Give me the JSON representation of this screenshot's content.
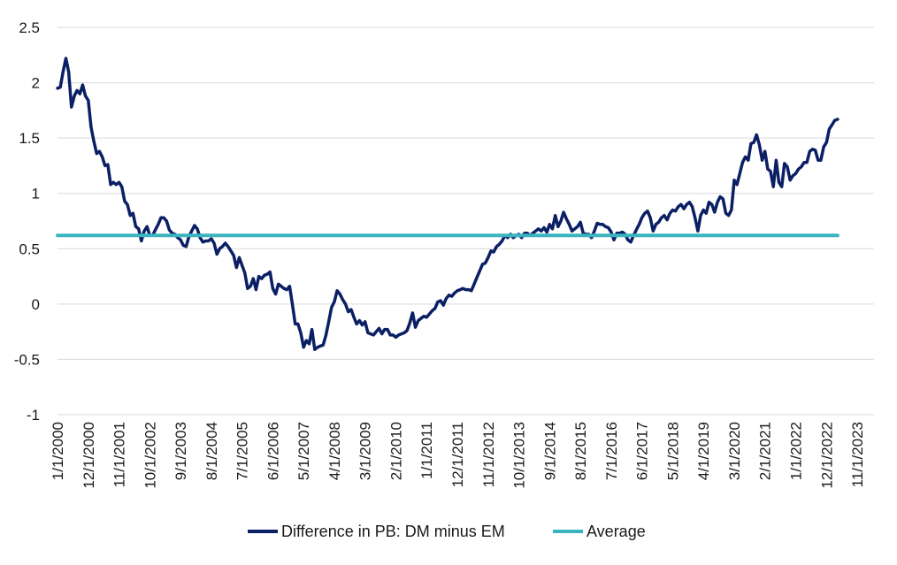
{
  "chart_data": {
    "type": "line",
    "title": "",
    "xlabel": "",
    "ylabel": "",
    "ylim": [
      -1,
      2.5
    ],
    "yticks": [
      "-1",
      "-0.5",
      "0",
      "0.5",
      "1",
      "1.5",
      "2",
      "2.5"
    ],
    "grid": true,
    "legend_position": "bottom",
    "x_tick_labels": [
      "1/1/2000",
      "12/1/2000",
      "11/1/2001",
      "10/1/2002",
      "9/1/2003",
      "8/1/2004",
      "7/1/2005",
      "6/1/2006",
      "5/1/2007",
      "4/1/2008",
      "3/1/2009",
      "2/1/2010",
      "1/1/2011",
      "12/1/2011",
      "11/1/2012",
      "10/1/2013",
      "9/1/2014",
      "8/1/2015",
      "7/1/2016",
      "6/1/2017",
      "5/1/2018",
      "4/1/2019",
      "3/1/2020",
      "2/1/2021",
      "1/1/2022",
      "12/1/2022",
      "11/1/2023"
    ],
    "x_start": "2000-01",
    "x_end": "2024-05",
    "series": [
      {
        "name": "Difference in PB: DM minus EM",
        "color": "#0b1f65",
        "points": [
          [
            "2000-01",
            1.95
          ],
          [
            "2000-02",
            1.96
          ],
          [
            "2000-03",
            2.1
          ],
          [
            "2000-04",
            2.22
          ],
          [
            "2000-05",
            2.1
          ],
          [
            "2000-06",
            1.78
          ],
          [
            "2000-07",
            1.88
          ],
          [
            "2000-08",
            1.93
          ],
          [
            "2000-09",
            1.9
          ],
          [
            "2000-10",
            1.98
          ],
          [
            "2000-11",
            1.88
          ],
          [
            "2000-12",
            1.84
          ],
          [
            "2001-01",
            1.6
          ],
          [
            "2001-02",
            1.47
          ],
          [
            "2001-03",
            1.36
          ],
          [
            "2001-04",
            1.38
          ],
          [
            "2001-05",
            1.33
          ],
          [
            "2001-06",
            1.25
          ],
          [
            "2001-07",
            1.26
          ],
          [
            "2001-08",
            1.08
          ],
          [
            "2001-09",
            1.1
          ],
          [
            "2001-10",
            1.08
          ],
          [
            "2001-11",
            1.1
          ],
          [
            "2001-12",
            1.06
          ],
          [
            "2002-01",
            0.93
          ],
          [
            "2002-02",
            0.9
          ],
          [
            "2002-03",
            0.8
          ],
          [
            "2002-04",
            0.82
          ],
          [
            "2002-05",
            0.7
          ],
          [
            "2002-06",
            0.68
          ],
          [
            "2002-07",
            0.57
          ],
          [
            "2002-08",
            0.66
          ],
          [
            "2002-09",
            0.7
          ],
          [
            "2002-10",
            0.62
          ],
          [
            "2002-11",
            0.62
          ],
          [
            "2002-12",
            0.67
          ],
          [
            "2003-01",
            0.72
          ],
          [
            "2003-02",
            0.78
          ],
          [
            "2003-03",
            0.78
          ],
          [
            "2003-04",
            0.75
          ],
          [
            "2003-05",
            0.67
          ],
          [
            "2003-06",
            0.64
          ],
          [
            "2003-07",
            0.63
          ],
          [
            "2003-08",
            0.6
          ],
          [
            "2003-09",
            0.58
          ],
          [
            "2003-10",
            0.53
          ],
          [
            "2003-11",
            0.52
          ],
          [
            "2003-12",
            0.61
          ],
          [
            "2004-01",
            0.66
          ],
          [
            "2004-02",
            0.71
          ],
          [
            "2004-03",
            0.68
          ],
          [
            "2004-04",
            0.6
          ],
          [
            "2004-05",
            0.56
          ],
          [
            "2004-06",
            0.57
          ],
          [
            "2004-07",
            0.57
          ],
          [
            "2004-08",
            0.59
          ],
          [
            "2004-09",
            0.55
          ],
          [
            "2004-10",
            0.45
          ],
          [
            "2004-11",
            0.5
          ],
          [
            "2004-12",
            0.52
          ],
          [
            "2005-01",
            0.55
          ],
          [
            "2005-02",
            0.52
          ],
          [
            "2005-03",
            0.48
          ],
          [
            "2005-04",
            0.44
          ],
          [
            "2005-05",
            0.33
          ],
          [
            "2005-06",
            0.42
          ],
          [
            "2005-07",
            0.35
          ],
          [
            "2005-08",
            0.28
          ],
          [
            "2005-09",
            0.14
          ],
          [
            "2005-10",
            0.16
          ],
          [
            "2005-11",
            0.23
          ],
          [
            "2005-12",
            0.13
          ],
          [
            "2006-01",
            0.25
          ],
          [
            "2006-02",
            0.23
          ],
          [
            "2006-03",
            0.26
          ],
          [
            "2006-04",
            0.27
          ],
          [
            "2006-05",
            0.29
          ],
          [
            "2006-06",
            0.14
          ],
          [
            "2006-07",
            0.09
          ],
          [
            "2006-08",
            0.18
          ],
          [
            "2006-09",
            0.16
          ],
          [
            "2006-10",
            0.14
          ],
          [
            "2006-11",
            0.13
          ],
          [
            "2006-12",
            0.16
          ],
          [
            "2007-01",
            0.0
          ],
          [
            "2007-02",
            -0.18
          ],
          [
            "2007-03",
            -0.18
          ],
          [
            "2007-04",
            -0.26
          ],
          [
            "2007-05",
            -0.39
          ],
          [
            "2007-06",
            -0.33
          ],
          [
            "2007-07",
            -0.36
          ],
          [
            "2007-08",
            -0.23
          ],
          [
            "2007-09",
            -0.41
          ],
          [
            "2007-10",
            -0.39
          ],
          [
            "2007-11",
            -0.38
          ],
          [
            "2007-12",
            -0.37
          ],
          [
            "2008-01",
            -0.28
          ],
          [
            "2008-02",
            -0.16
          ],
          [
            "2008-03",
            -0.03
          ],
          [
            "2008-04",
            0.02
          ],
          [
            "2008-05",
            0.12
          ],
          [
            "2008-06",
            0.09
          ],
          [
            "2008-07",
            0.04
          ],
          [
            "2008-08",
            0.0
          ],
          [
            "2008-09",
            -0.07
          ],
          [
            "2008-10",
            -0.05
          ],
          [
            "2008-11",
            -0.12
          ],
          [
            "2008-12",
            -0.18
          ],
          [
            "2009-01",
            -0.15
          ],
          [
            "2009-02",
            -0.19
          ],
          [
            "2009-03",
            -0.16
          ],
          [
            "2009-04",
            -0.26
          ],
          [
            "2009-05",
            -0.27
          ],
          [
            "2009-06",
            -0.28
          ],
          [
            "2009-07",
            -0.25
          ],
          [
            "2009-08",
            -0.22
          ],
          [
            "2009-09",
            -0.27
          ],
          [
            "2009-10",
            -0.23
          ],
          [
            "2009-11",
            -0.23
          ],
          [
            "2009-12",
            -0.28
          ],
          [
            "2010-01",
            -0.28
          ],
          [
            "2010-02",
            -0.3
          ],
          [
            "2010-03",
            -0.28
          ],
          [
            "2010-04",
            -0.27
          ],
          [
            "2010-05",
            -0.26
          ],
          [
            "2010-06",
            -0.24
          ],
          [
            "2010-07",
            -0.17
          ],
          [
            "2010-08",
            -0.08
          ],
          [
            "2010-09",
            -0.21
          ],
          [
            "2010-10",
            -0.15
          ],
          [
            "2010-11",
            -0.13
          ],
          [
            "2010-12",
            -0.11
          ],
          [
            "2011-01",
            -0.12
          ],
          [
            "2011-02",
            -0.09
          ],
          [
            "2011-03",
            -0.06
          ],
          [
            "2011-04",
            -0.04
          ],
          [
            "2011-05",
            0.02
          ],
          [
            "2011-06",
            0.03
          ],
          [
            "2011-07",
            -0.01
          ],
          [
            "2011-08",
            0.05
          ],
          [
            "2011-09",
            0.08
          ],
          [
            "2011-10",
            0.07
          ],
          [
            "2011-11",
            0.1
          ],
          [
            "2011-12",
            0.12
          ],
          [
            "2012-01",
            0.13
          ],
          [
            "2012-02",
            0.14
          ],
          [
            "2012-03",
            0.13
          ],
          [
            "2012-04",
            0.13
          ],
          [
            "2012-05",
            0.12
          ],
          [
            "2012-06",
            0.18
          ],
          [
            "2012-07",
            0.24
          ],
          [
            "2012-08",
            0.3
          ],
          [
            "2012-09",
            0.36
          ],
          [
            "2012-10",
            0.37
          ],
          [
            "2012-11",
            0.42
          ],
          [
            "2012-12",
            0.48
          ],
          [
            "2013-01",
            0.47
          ],
          [
            "2013-02",
            0.52
          ],
          [
            "2013-03",
            0.54
          ],
          [
            "2013-04",
            0.57
          ],
          [
            "2013-05",
            0.62
          ],
          [
            "2013-06",
            0.6
          ],
          [
            "2013-07",
            0.63
          ],
          [
            "2013-08",
            0.6
          ],
          [
            "2013-09",
            0.62
          ],
          [
            "2013-10",
            0.63
          ],
          [
            "2013-11",
            0.6
          ],
          [
            "2013-12",
            0.64
          ],
          [
            "2014-01",
            0.64
          ],
          [
            "2014-02",
            0.62
          ],
          [
            "2014-03",
            0.64
          ],
          [
            "2014-04",
            0.66
          ],
          [
            "2014-05",
            0.68
          ],
          [
            "2014-06",
            0.66
          ],
          [
            "2014-07",
            0.69
          ],
          [
            "2014-08",
            0.65
          ],
          [
            "2014-09",
            0.72
          ],
          [
            "2014-10",
            0.68
          ],
          [
            "2014-11",
            0.8
          ],
          [
            "2014-12",
            0.7
          ],
          [
            "2015-01",
            0.75
          ],
          [
            "2015-02",
            0.83
          ],
          [
            "2015-03",
            0.77
          ],
          [
            "2015-04",
            0.72
          ],
          [
            "2015-05",
            0.66
          ],
          [
            "2015-06",
            0.68
          ],
          [
            "2015-07",
            0.7
          ],
          [
            "2015-08",
            0.74
          ],
          [
            "2015-09",
            0.64
          ],
          [
            "2015-10",
            0.63
          ],
          [
            "2015-11",
            0.63
          ],
          [
            "2015-12",
            0.6
          ],
          [
            "2016-01",
            0.66
          ],
          [
            "2016-02",
            0.73
          ],
          [
            "2016-03",
            0.72
          ],
          [
            "2016-04",
            0.72
          ],
          [
            "2016-05",
            0.7
          ],
          [
            "2016-06",
            0.69
          ],
          [
            "2016-07",
            0.65
          ],
          [
            "2016-08",
            0.58
          ],
          [
            "2016-09",
            0.64
          ],
          [
            "2016-10",
            0.64
          ],
          [
            "2016-11",
            0.65
          ],
          [
            "2016-12",
            0.63
          ],
          [
            "2017-01",
            0.58
          ],
          [
            "2017-02",
            0.56
          ],
          [
            "2017-03",
            0.62
          ],
          [
            "2017-04",
            0.67
          ],
          [
            "2017-05",
            0.72
          ],
          [
            "2017-06",
            0.78
          ],
          [
            "2017-07",
            0.82
          ],
          [
            "2017-08",
            0.84
          ],
          [
            "2017-09",
            0.78
          ],
          [
            "2017-10",
            0.66
          ],
          [
            "2017-11",
            0.72
          ],
          [
            "2017-12",
            0.74
          ],
          [
            "2018-01",
            0.78
          ],
          [
            "2018-02",
            0.8
          ],
          [
            "2018-03",
            0.76
          ],
          [
            "2018-04",
            0.82
          ],
          [
            "2018-05",
            0.85
          ],
          [
            "2018-06",
            0.84
          ],
          [
            "2018-07",
            0.88
          ],
          [
            "2018-08",
            0.9
          ],
          [
            "2018-09",
            0.86
          ],
          [
            "2018-10",
            0.9
          ],
          [
            "2018-11",
            0.92
          ],
          [
            "2018-12",
            0.88
          ],
          [
            "2019-01",
            0.78
          ],
          [
            "2019-02",
            0.66
          ],
          [
            "2019-03",
            0.8
          ],
          [
            "2019-04",
            0.85
          ],
          [
            "2019-05",
            0.82
          ],
          [
            "2019-06",
            0.92
          ],
          [
            "2019-07",
            0.9
          ],
          [
            "2019-08",
            0.83
          ],
          [
            "2019-09",
            0.92
          ],
          [
            "2019-10",
            0.97
          ],
          [
            "2019-11",
            0.95
          ],
          [
            "2019-12",
            0.82
          ],
          [
            "2020-01",
            0.8
          ],
          [
            "2020-02",
            0.85
          ],
          [
            "2020-03",
            1.12
          ],
          [
            "2020-04",
            1.08
          ],
          [
            "2020-05",
            1.18
          ],
          [
            "2020-06",
            1.28
          ],
          [
            "2020-07",
            1.33
          ],
          [
            "2020-08",
            1.3
          ],
          [
            "2020-09",
            1.45
          ],
          [
            "2020-10",
            1.46
          ],
          [
            "2020-11",
            1.53
          ],
          [
            "2020-12",
            1.44
          ],
          [
            "2021-01",
            1.3
          ],
          [
            "2021-02",
            1.38
          ],
          [
            "2021-03",
            1.22
          ],
          [
            "2021-04",
            1.2
          ],
          [
            "2021-05",
            1.06
          ],
          [
            "2021-06",
            1.3
          ],
          [
            "2021-07",
            1.1
          ],
          [
            "2021-08",
            1.06
          ],
          [
            "2021-09",
            1.27
          ],
          [
            "2021-10",
            1.24
          ],
          [
            "2021-11",
            1.12
          ],
          [
            "2021-12",
            1.16
          ],
          [
            "2022-01",
            1.18
          ],
          [
            "2022-02",
            1.22
          ],
          [
            "2022-03",
            1.24
          ],
          [
            "2022-04",
            1.28
          ],
          [
            "2022-05",
            1.28
          ],
          [
            "2022-06",
            1.38
          ],
          [
            "2022-07",
            1.4
          ],
          [
            "2022-08",
            1.39
          ],
          [
            "2022-09",
            1.3
          ],
          [
            "2022-10",
            1.3
          ],
          [
            "2022-11",
            1.42
          ],
          [
            "2022-12",
            1.46
          ],
          [
            "2023-01",
            1.58
          ],
          [
            "2023-02",
            1.62
          ],
          [
            "2023-03",
            1.66
          ],
          [
            "2023-04",
            1.67
          ]
        ]
      },
      {
        "name": "Average",
        "color": "#3bb4bf",
        "points": [
          [
            "2000-01",
            0.62
          ],
          [
            "2023-04",
            0.62
          ]
        ]
      }
    ]
  }
}
